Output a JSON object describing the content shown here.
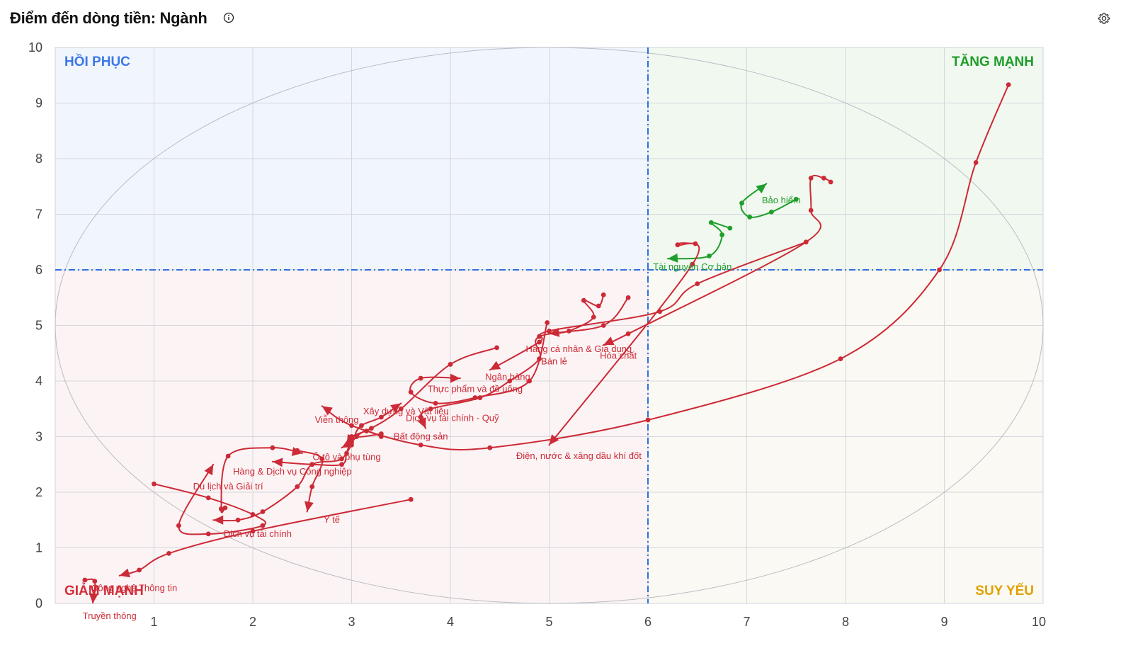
{
  "header": {
    "title": "Điểm đến dòng tiền: Ngành",
    "info_icon": "info-circle-icon",
    "settings_icon": "gear-icon"
  },
  "colors": {
    "down": "#cc2a36",
    "up": "#1e9e2a",
    "divider": "#2f6fe0",
    "recovery": "#3b78e7",
    "strong": "#1e9e2a",
    "weak": "#e0a100",
    "fall": "#d32f3c",
    "bg_recovery": "#f1f5fc",
    "bg_strong": "#f1f8f0",
    "bg_fall": "#fcf3f4",
    "bg_weak": "#fbf9f3"
  },
  "chart_data": {
    "type": "scatter",
    "title": "Điểm đến dòng tiền: Ngành",
    "xlim": [
      0,
      10
    ],
    "ylim": [
      0,
      10
    ],
    "x_ticks": [
      "1",
      "2",
      "3",
      "4",
      "5",
      "6",
      "7",
      "8",
      "9",
      "10"
    ],
    "y_ticks": [
      "0",
      "1",
      "2",
      "3",
      "4",
      "5",
      "6",
      "7",
      "8",
      "9",
      "10"
    ],
    "grid": true,
    "divider": {
      "x": 6,
      "y": 6
    },
    "quadrants": {
      "top_left": "HỒI PHỤC",
      "top_right": "TĂNG MẠNH",
      "bottom_left": "GIẢM MẠNH",
      "bottom_right": "SUY YẾU"
    },
    "series": [
      {
        "name": "Bảo hiểm",
        "trend": "up",
        "label_at": [
          7.35,
          7.2
        ],
        "points": [
          [
            7.5,
            7.27
          ],
          [
            7.25,
            7.04
          ],
          [
            7.03,
            6.95
          ],
          [
            6.95,
            7.2
          ],
          [
            7.2,
            7.55
          ]
        ]
      },
      {
        "name": "Tài nguyên Cơ bản",
        "trend": "up",
        "label_at": [
          6.45,
          6.0
        ],
        "points": [
          [
            6.83,
            6.75
          ],
          [
            6.64,
            6.85
          ],
          [
            6.75,
            6.63
          ],
          [
            6.62,
            6.25
          ],
          [
            6.2,
            6.2
          ]
        ]
      },
      {
        "name": "Hóa chất",
        "trend": "down",
        "label_at": [
          5.7,
          4.4
        ],
        "points": [
          [
            7.85,
            7.58
          ],
          [
            7.78,
            7.65
          ],
          [
            7.65,
            7.65
          ],
          [
            7.65,
            7.07
          ],
          [
            7.6,
            6.5
          ],
          [
            5.8,
            4.85
          ],
          [
            5.55,
            4.65
          ]
        ]
      },
      {
        "name": "Hàng cá nhân & Gia dụng",
        "trend": "down",
        "label_at": [
          5.3,
          4.52
        ],
        "points": [
          [
            7.6,
            6.5
          ],
          [
            6.5,
            5.75
          ],
          [
            6.12,
            5.25
          ],
          [
            5.0,
            4.9
          ],
          [
            4.9,
            4.7
          ],
          [
            4.4,
            4.2
          ]
        ]
      },
      {
        "name": "Bán lẻ",
        "trend": "down",
        "label_at": [
          5.05,
          4.3
        ],
        "points": [
          [
            5.55,
            5.55
          ],
          [
            5.5,
            5.35
          ],
          [
            5.35,
            5.45
          ],
          [
            5.45,
            5.15
          ],
          [
            5.2,
            4.9
          ],
          [
            5.0,
            4.85
          ]
        ]
      },
      {
        "name": "Ngân hàng",
        "trend": "down",
        "label_at": [
          4.58,
          4.02
        ],
        "points": [
          [
            5.8,
            5.5
          ],
          [
            5.55,
            5.0
          ],
          [
            4.9,
            4.8
          ],
          [
            4.9,
            4.4
          ],
          [
            4.6,
            4.0
          ],
          [
            4.3,
            3.7
          ],
          [
            3.8,
            3.5
          ],
          [
            3.7,
            3.35
          ],
          [
            3.75,
            3.15
          ]
        ]
      },
      {
        "name": "Thực phẩm và đồ uống",
        "trend": "down",
        "label_at": [
          4.25,
          3.8
        ],
        "points": [
          [
            4.98,
            5.05
          ],
          [
            4.8,
            4.0
          ],
          [
            4.25,
            3.7
          ],
          [
            3.85,
            3.6
          ],
          [
            3.6,
            3.8
          ],
          [
            3.7,
            4.05
          ],
          [
            4.1,
            4.05
          ]
        ]
      },
      {
        "name": "Dịch vụ tài chính - Quỹ",
        "trend": "down",
        "label_at": [
          4.02,
          3.28
        ],
        "points": [
          [
            4.47,
            4.6
          ],
          [
            4.0,
            4.3
          ],
          [
            3.5,
            3.5
          ],
          [
            3.2,
            3.15
          ],
          [
            3.0,
            3.0
          ],
          [
            2.95,
            2.85
          ]
        ]
      },
      {
        "name": "Xây dựng và Vật liệu",
        "trend": "down",
        "label_at": [
          3.55,
          3.4
        ],
        "points": [
          [
            3.3,
            3.05
          ],
          [
            3.05,
            3.0
          ],
          [
            3.1,
            3.2
          ],
          [
            3.3,
            3.35
          ],
          [
            3.5,
            3.6
          ]
        ]
      },
      {
        "name": "Viễn thông",
        "trend": "down",
        "label_at": [
          2.85,
          3.25
        ],
        "points": [
          [
            3.3,
            3.0
          ],
          [
            3.15,
            3.1
          ],
          [
            3.05,
            3.0
          ],
          [
            3.0,
            2.9
          ],
          [
            2.9,
            2.8
          ]
        ]
      },
      {
        "name": "Bất động sản",
        "trend": "down",
        "label_at": [
          3.7,
          2.95
        ],
        "points": [
          [
            9.65,
            9.33
          ],
          [
            9.32,
            7.93
          ],
          [
            8.95,
            6.0
          ],
          [
            7.95,
            4.4
          ],
          [
            6.0,
            3.3
          ],
          [
            4.4,
            2.8
          ],
          [
            3.7,
            2.85
          ],
          [
            3.0,
            3.2
          ],
          [
            2.7,
            3.55
          ]
        ]
      },
      {
        "name": "Điện, nước & xăng dầu khí đốt",
        "trend": "down",
        "label_at": [
          5.3,
          2.6
        ],
        "points": [
          [
            6.48,
            6.47
          ],
          [
            6.3,
            6.45
          ],
          [
            6.45,
            6.1
          ],
          [
            5.0,
            2.85
          ]
        ]
      },
      {
        "name": "Ô tô và phụ tùng",
        "trend": "down",
        "label_at": [
          2.95,
          2.58
        ],
        "points": [
          [
            3.0,
            2.85
          ],
          [
            2.95,
            2.7
          ],
          [
            2.9,
            2.5
          ],
          [
            2.6,
            2.5
          ],
          [
            2.2,
            2.55
          ]
        ]
      },
      {
        "name": "Hàng & Dịch vụ Công nghiệp",
        "trend": "down",
        "label_at": [
          2.4,
          2.32
        ],
        "points": [
          [
            3.0,
            3.0
          ],
          [
            2.9,
            2.6
          ],
          [
            2.6,
            2.5
          ],
          [
            2.45,
            2.1
          ],
          [
            2.1,
            1.65
          ],
          [
            1.85,
            1.5
          ],
          [
            1.6,
            1.5
          ]
        ]
      },
      {
        "name": "Du lịch và Giải trí",
        "trend": "down",
        "label_at": [
          1.75,
          2.05
        ],
        "points": [
          [
            2.45,
            2.75
          ],
          [
            2.7,
            2.6
          ],
          [
            2.6,
            2.1
          ],
          [
            2.55,
            1.65
          ]
        ]
      },
      {
        "name": "Y tế",
        "trend": "down",
        "label_at": [
          2.8,
          1.45
        ],
        "points": [
          [
            1.72,
            1.72
          ],
          [
            1.68,
            1.7
          ],
          [
            1.75,
            2.65
          ],
          [
            2.2,
            2.8
          ],
          [
            2.5,
            2.7
          ]
        ]
      },
      {
        "name": "Dịch vụ tài chính",
        "trend": "down",
        "label_at": [
          2.05,
          1.2
        ],
        "points": [
          [
            1.0,
            2.15
          ],
          [
            1.55,
            1.9
          ],
          [
            2.0,
            1.6
          ],
          [
            2.1,
            1.4
          ],
          [
            1.55,
            1.25
          ],
          [
            1.25,
            1.4
          ],
          [
            1.6,
            2.5
          ]
        ]
      },
      {
        "name": "Công nghệ Thông tin",
        "trend": "down",
        "label_at": [
          0.8,
          0.22
        ],
        "points": [
          [
            3.6,
            1.87
          ],
          [
            2.0,
            1.3
          ],
          [
            1.15,
            0.9
          ],
          [
            0.85,
            0.6
          ],
          [
            0.65,
            0.5
          ]
        ]
      },
      {
        "name": "Truyền thông",
        "trend": "down",
        "label_at": [
          0.55,
          -0.28
        ],
        "points": [
          [
            0.3,
            0.42
          ],
          [
            0.4,
            0.4
          ],
          [
            0.38,
            0.0
          ]
        ]
      }
    ]
  }
}
